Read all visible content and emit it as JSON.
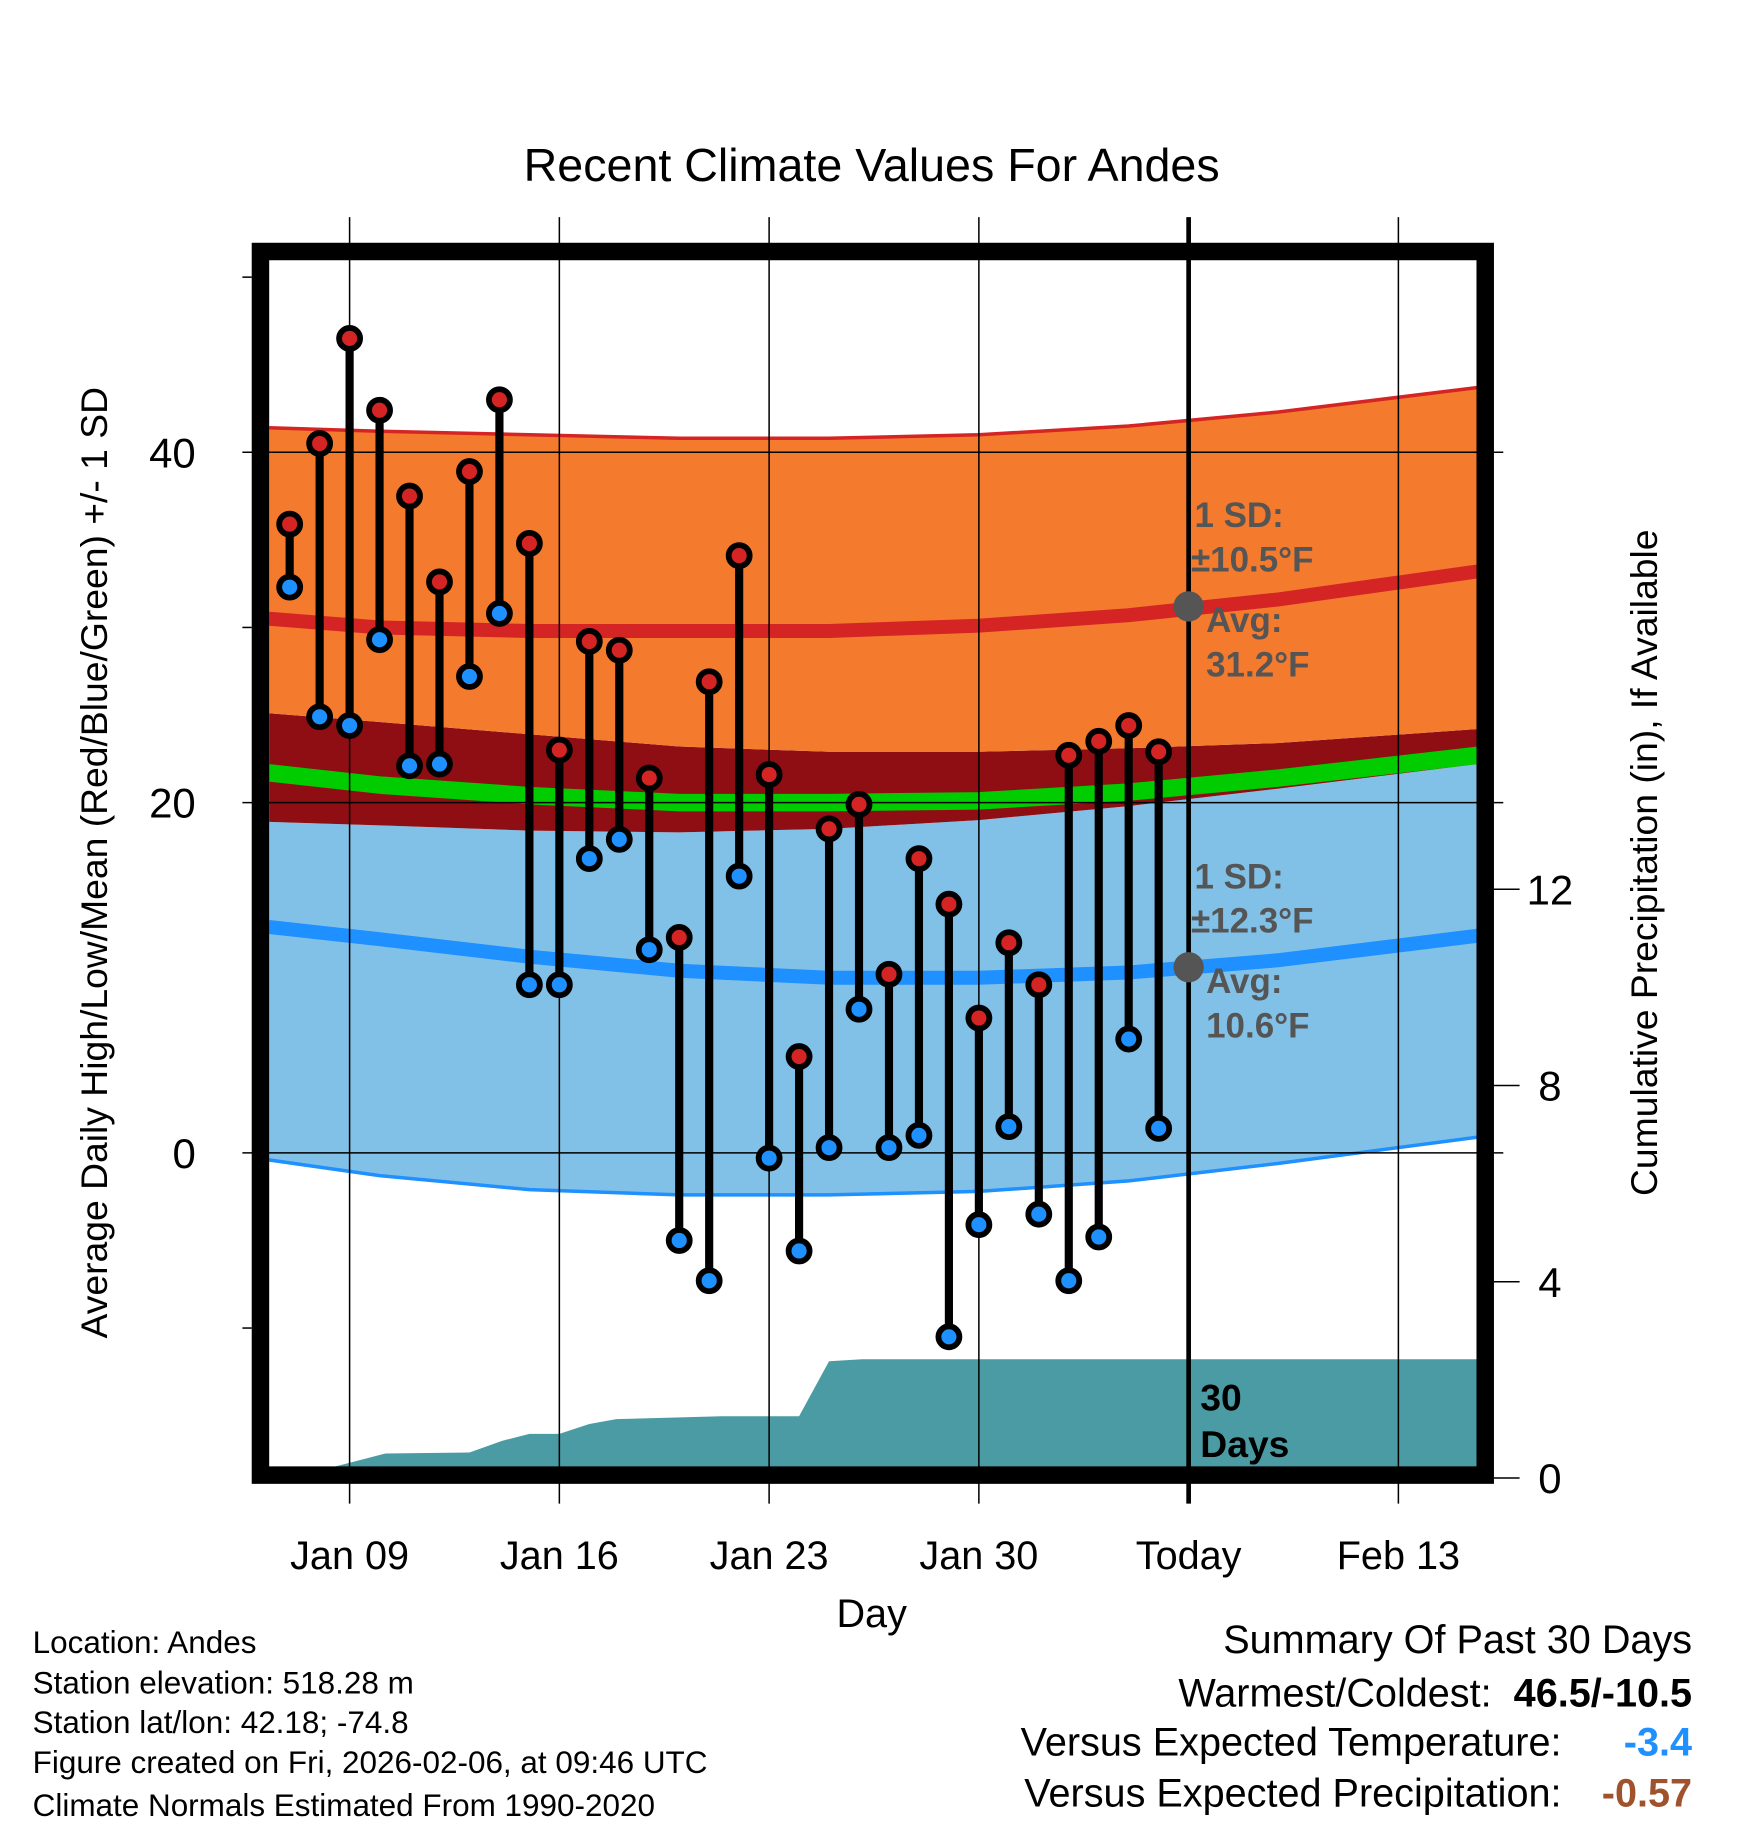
{
  "chart_data": {
    "type": "line",
    "title": "Recent Climate Values For Andes",
    "xlabel": "Day",
    "ylabel": "Average Daily High/Low/Mean (Red/Blue/Green) +/- 1 SD",
    "y2label": "Cumulative Precipitation (in), If Available",
    "ylim": [
      -18,
      51
    ],
    "y2lim": [
      0,
      16
    ],
    "xlim_days": [
      6.3,
      46.65
    ],
    "x_ticks": [
      {
        "day": 9,
        "label": "Jan 09"
      },
      {
        "day": 16,
        "label": "Jan 16"
      },
      {
        "day": 23,
        "label": "Jan 23"
      },
      {
        "day": 30,
        "label": "Jan 30"
      },
      {
        "day": 37,
        "label": "Today"
      },
      {
        "day": 44,
        "label": "Feb 13"
      }
    ],
    "y_ticks": [
      0,
      20,
      40
    ],
    "y_minor_ticks": [
      -10,
      30,
      50
    ],
    "y2_ticks": [
      0,
      4,
      8,
      12
    ],
    "grid": true,
    "observed": {
      "days": [
        7,
        8,
        9,
        10,
        11,
        12,
        13,
        14,
        15,
        16,
        17,
        18,
        19,
        20,
        21,
        22,
        23,
        24,
        25,
        26,
        27,
        28,
        29,
        30,
        31,
        32,
        33,
        34,
        35,
        36
      ],
      "high": [
        35.9,
        40.5,
        46.5,
        42.4,
        37.5,
        32.6,
        38.9,
        43.0,
        34.8,
        23.0,
        29.2,
        28.7,
        21.4,
        12.3,
        26.9,
        34.1,
        21.6,
        5.5,
        18.5,
        19.9,
        10.2,
        16.8,
        14.2,
        7.7,
        12.0,
        9.6,
        22.7,
        23.5,
        24.4,
        22.9
      ],
      "low": [
        32.3,
        24.9,
        24.4,
        29.3,
        22.1,
        22.2,
        27.2,
        30.8,
        9.6,
        9.6,
        16.8,
        17.9,
        11.6,
        -5.0,
        -7.3,
        15.8,
        -0.3,
        -5.6,
        0.3,
        8.2,
        0.3,
        1.0,
        -10.5,
        -4.1,
        1.5,
        -3.5,
        -7.3,
        -4.8,
        6.5,
        1.4
      ]
    },
    "normals": {
      "days": [
        6.3,
        10,
        15,
        20,
        25,
        30,
        35,
        40,
        46.65
      ],
      "high_upper": [
        41.4,
        41.2,
        41.0,
        40.8,
        40.8,
        41.0,
        41.5,
        42.3,
        43.7
      ],
      "high_mean": [
        30.5,
        30.0,
        29.8,
        29.8,
        29.8,
        30.1,
        30.7,
        31.6,
        33.2
      ],
      "high_lower": [
        25.1,
        24.6,
        23.9,
        23.2,
        22.9,
        22.9,
        23.1,
        23.4,
        24.2
      ],
      "low_upper": [
        18.9,
        18.7,
        18.4,
        18.3,
        18.5,
        19.0,
        19.8,
        20.8,
        22.2
      ],
      "low_mean": [
        12.9,
        12.2,
        11.2,
        10.4,
        10.0,
        10.0,
        10.3,
        11.0,
        12.4
      ],
      "low_lower": [
        -0.4,
        -1.3,
        -2.1,
        -2.4,
        -2.4,
        -2.2,
        -1.6,
        -0.6,
        0.9
      ],
      "mean": [
        21.7,
        21.0,
        20.4,
        20.0,
        20.0,
        20.1,
        20.6,
        21.4,
        22.7
      ]
    },
    "precip_cumulative": {
      "days": [
        6.3,
        8.3,
        10.2,
        13.0,
        14.1,
        15.0,
        16.0,
        17.0,
        17.9,
        21.4,
        24.0,
        25.0,
        26.1,
        46.65
      ],
      "values": [
        0.2,
        0.2,
        0.5,
        0.52,
        0.76,
        0.9,
        0.9,
        1.1,
        1.2,
        1.26,
        1.26,
        2.38,
        2.42,
        2.42
      ]
    },
    "annotations": {
      "high_sd": "1 SD:",
      "high_sd_value": "±10.5°F",
      "high_avg": "Avg:",
      "high_avg_value": "31.2°F",
      "high_avg_temp": 31.2,
      "low_sd": "1 SD:",
      "low_sd_value": "±12.3°F",
      "low_avg": "Avg:",
      "low_avg_value": "10.6°F",
      "low_avg_temp": 10.6,
      "days_label_1": "30",
      "days_label_2": "Days"
    },
    "colors": {
      "high_band": "#F47A2E",
      "overlap_band": "#8E0E14",
      "low_band": "#82C1E7",
      "mean_line": "#00CC00",
      "high_line": "#D42424",
      "low_line": "#1E90FF",
      "precip": "#4A9BA3",
      "high_point": "#D42424",
      "low_point": "#1E90FF"
    }
  },
  "footer": {
    "location": "Location: Andes",
    "elevation": "Station elevation: 518.28 m",
    "latlon": "Station lat/lon: 42.18; -74.8",
    "created": "Figure created on Fri, 2026-02-06, at 09:46 UTC",
    "normals": "Climate Normals Estimated From 1990-2020"
  },
  "summary": {
    "title": "Summary Of Past 30 Days",
    "warmest_label": "Warmest/Coldest:",
    "warmest_value": "46.5/-10.5",
    "temp_label": "Versus Expected Temperature:",
    "temp_value": "-3.4",
    "temp_color": "#1E90FF",
    "precip_label": "Versus Expected Precipitation:",
    "precip_value": "-0.57",
    "precip_color": "#A0522D"
  }
}
